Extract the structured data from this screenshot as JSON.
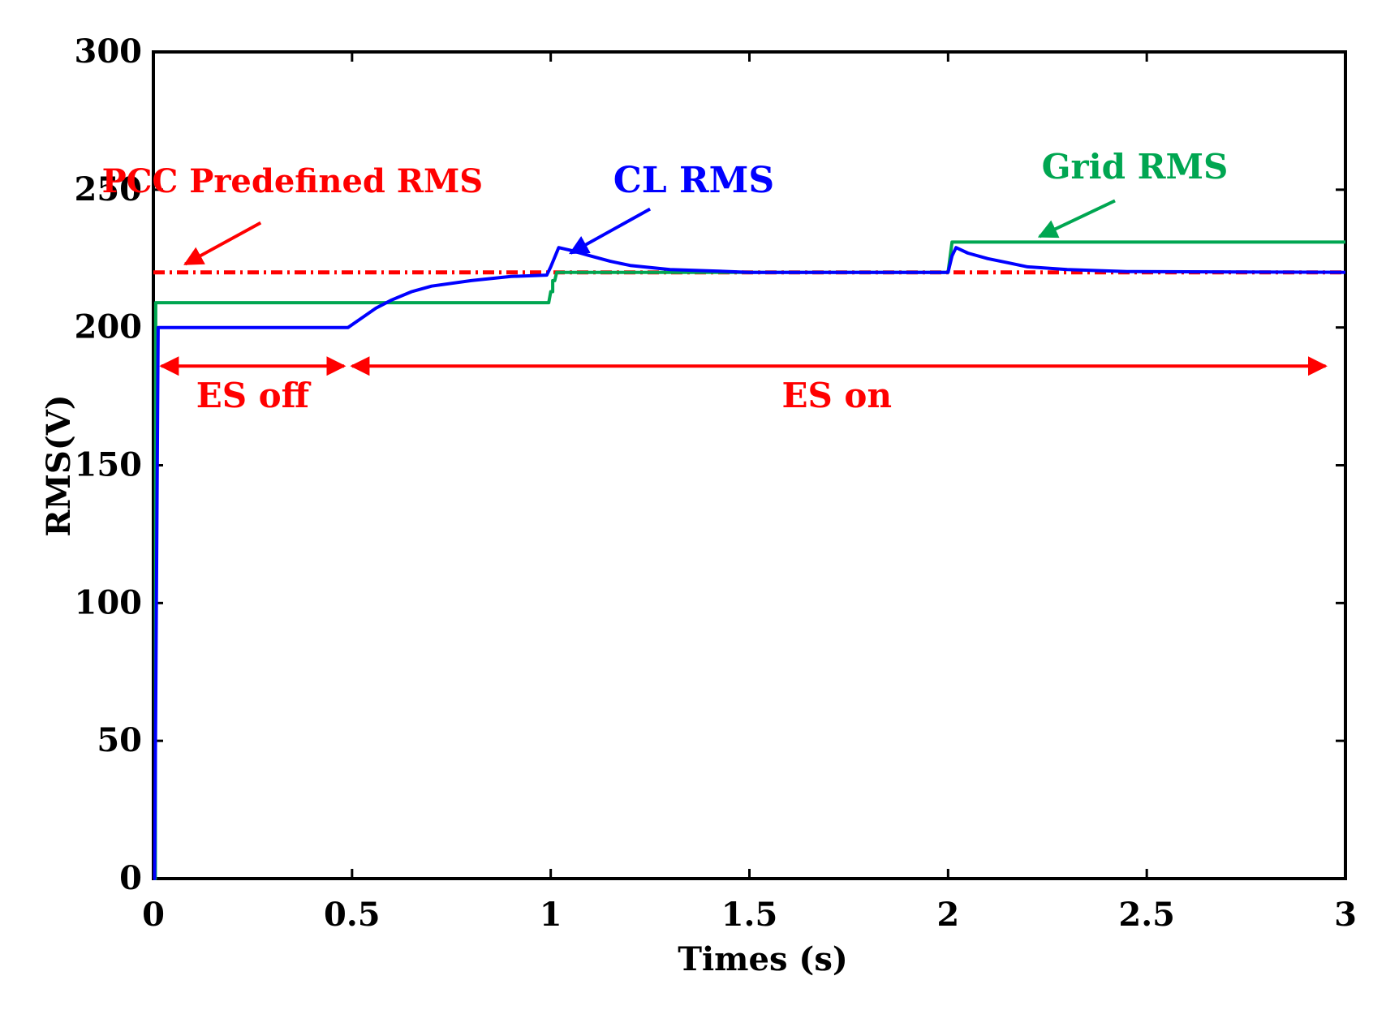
{
  "chart_data": {
    "type": "line",
    "title": "",
    "xlabel": "Times (s)",
    "ylabel": "RMS(V)",
    "xlim": [
      0,
      3
    ],
    "ylim": [
      0,
      300
    ],
    "xticks": [
      0,
      0.5,
      1,
      1.5,
      2,
      2.5,
      3
    ],
    "xtick_labels": [
      "0",
      "0.5",
      "1",
      "1.5",
      "2",
      "2.5",
      "3"
    ],
    "yticks": [
      0,
      50,
      100,
      150,
      200,
      250,
      300
    ],
    "ytick_labels": [
      "0",
      "50",
      "100",
      "150",
      "200",
      "250",
      "300"
    ],
    "grid": false,
    "series": [
      {
        "name": "PCC Predefined RMS",
        "color": "#ff0000",
        "style": "dash-dot",
        "x": [
          0.0,
          3.0
        ],
        "y": [
          220,
          220
        ]
      },
      {
        "name": "Grid RMS",
        "color": "#00a651",
        "style": "solid",
        "x": [
          0.0,
          0.005,
          0.006,
          0.995,
          1.0,
          1.005,
          1.005,
          1.01,
          1.015,
          1.995,
          2.0,
          2.01,
          3.0
        ],
        "y": [
          0,
          0,
          209,
          209,
          213,
          213,
          217,
          217,
          220,
          220,
          220,
          231,
          231
        ]
      },
      {
        "name": "CL RMS",
        "color": "#0000ff",
        "style": "solid",
        "x": [
          0.0,
          0.003,
          0.012,
          0.49,
          0.52,
          0.56,
          0.6,
          0.65,
          0.7,
          0.8,
          0.9,
          0.99,
          1.0,
          1.02,
          1.05,
          1.1,
          1.15,
          1.2,
          1.3,
          1.45,
          1.5,
          2.0,
          2.01,
          2.02,
          2.05,
          2.1,
          2.15,
          2.2,
          2.3,
          2.45,
          3.0
        ],
        "y": [
          0,
          0,
          200,
          200,
          203,
          207,
          210,
          213,
          215,
          217,
          218.5,
          219,
          222,
          229,
          228,
          226,
          224,
          222.5,
          221,
          220.3,
          220,
          220,
          226,
          229,
          227,
          225,
          223.5,
          222,
          221,
          220.3,
          220
        ]
      }
    ],
    "annotations": [
      {
        "text": "PCC Predefined RMS",
        "color": "#ff0000",
        "x": 0.35,
        "y": 249,
        "arrow_from": [
          0.27,
          238
        ],
        "arrow_to": [
          0.08,
          223
        ]
      },
      {
        "text": "CL RMS",
        "color": "#0000ff",
        "x": 1.36,
        "y": 249,
        "arrow_from": [
          1.25,
          243
        ],
        "arrow_to": [
          1.05,
          227
        ]
      },
      {
        "text": "Grid RMS",
        "color": "#00a651",
        "x": 2.47,
        "y": 254,
        "arrow_from": [
          2.42,
          246
        ],
        "arrow_to": [
          2.23,
          233
        ]
      },
      {
        "text": "ES off",
        "color": "#ff0000",
        "x": 0.25,
        "y": 171
      },
      {
        "text": "ES on",
        "color": "#ff0000",
        "x": 1.72,
        "y": 171
      }
    ],
    "spans": [
      {
        "label": "ES off",
        "color": "#ff0000",
        "from": 0.02,
        "to": 0.48,
        "y": 186
      },
      {
        "label": "ES on",
        "color": "#ff0000",
        "from": 0.5,
        "to": 2.95,
        "y": 186
      }
    ]
  }
}
